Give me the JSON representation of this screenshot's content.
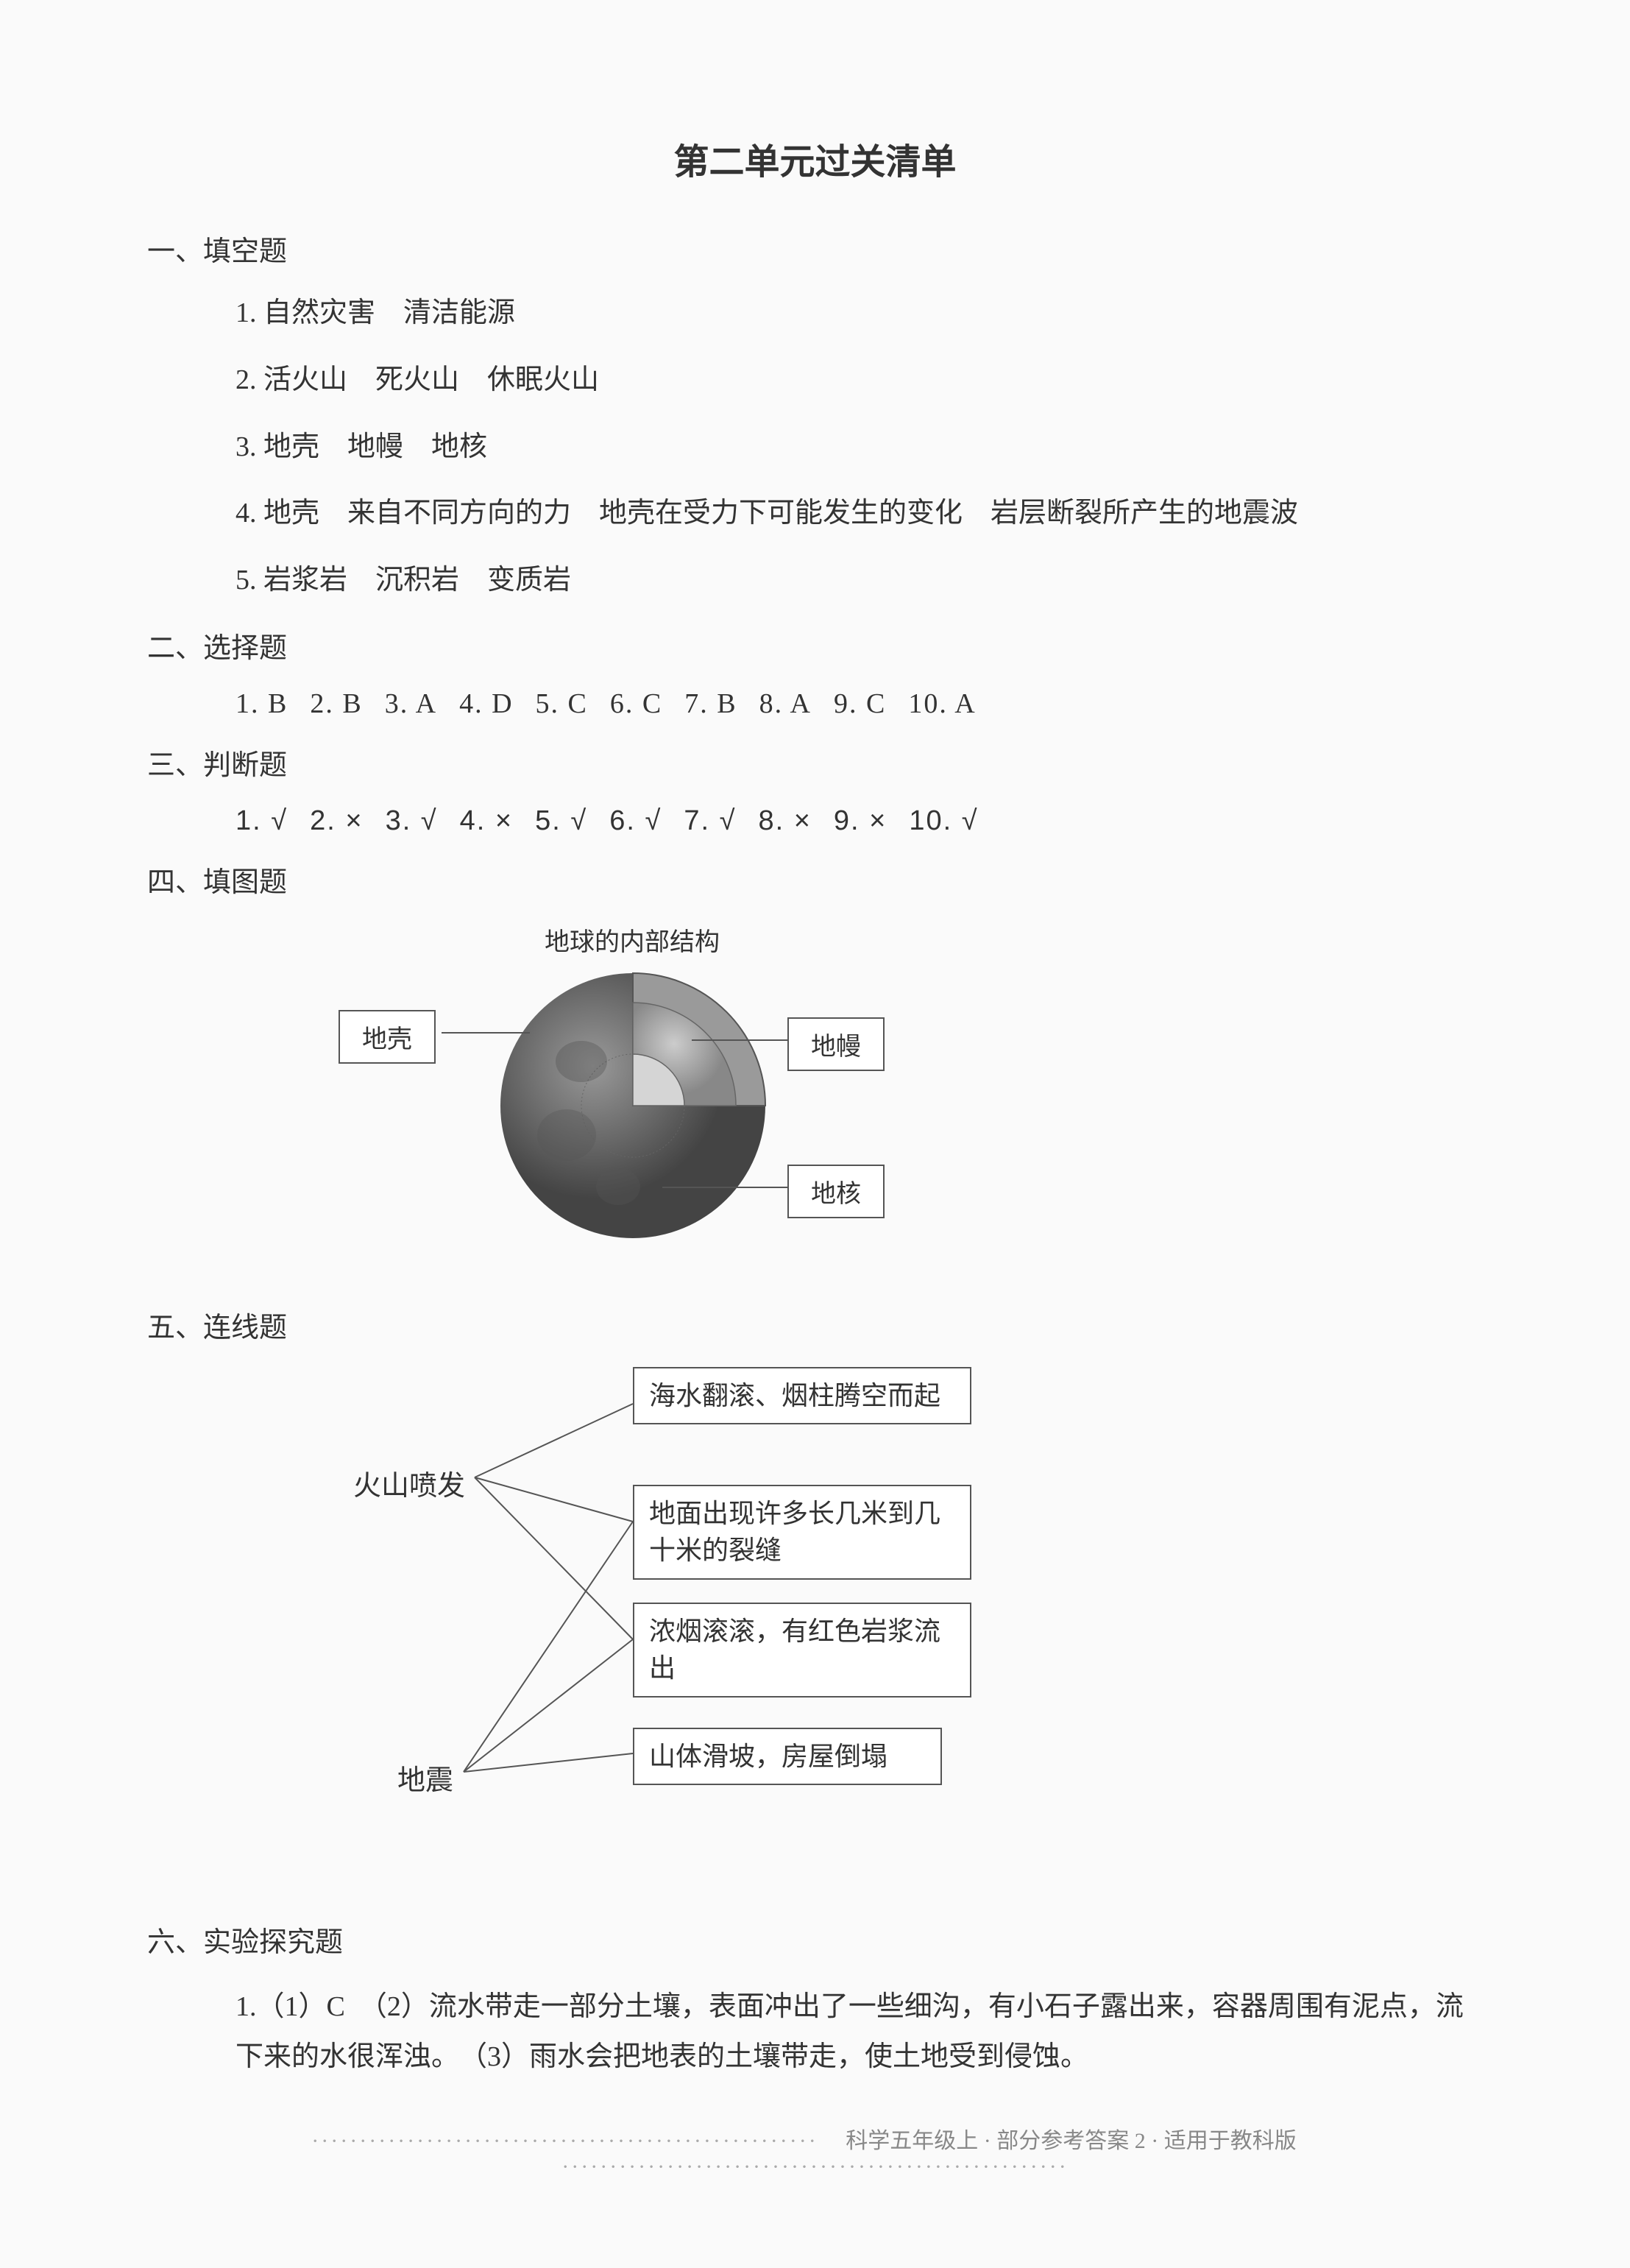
{
  "title": "第二单元过关清单",
  "sections": {
    "fillBlank": {
      "heading": "一、填空题",
      "items": [
        "1. 自然灾害　清洁能源",
        "2. 活火山　死火山　休眠火山",
        "3. 地壳　地幔　地核",
        "4. 地壳　来自不同方向的力　地壳在受力下可能发生的变化　岩层断裂所产生的地震波",
        "5. 岩浆岩　沉积岩　变质岩"
      ]
    },
    "choice": {
      "heading": "二、选择题",
      "answers": [
        {
          "n": "1.",
          "a": "B"
        },
        {
          "n": "2.",
          "a": "B"
        },
        {
          "n": "3.",
          "a": "A"
        },
        {
          "n": "4.",
          "a": "D"
        },
        {
          "n": "5.",
          "a": "C"
        },
        {
          "n": "6.",
          "a": "C"
        },
        {
          "n": "7.",
          "a": "B"
        },
        {
          "n": "8.",
          "a": "A"
        },
        {
          "n": "9.",
          "a": "C"
        },
        {
          "n": "10.",
          "a": "A"
        }
      ]
    },
    "judge": {
      "heading": "三、判断题",
      "answers": [
        {
          "n": "1.",
          "a": "√"
        },
        {
          "n": "2.",
          "a": "×"
        },
        {
          "n": "3.",
          "a": "√"
        },
        {
          "n": "4.",
          "a": "×"
        },
        {
          "n": "5.",
          "a": "√"
        },
        {
          "n": "6.",
          "a": "√"
        },
        {
          "n": "7.",
          "a": "√"
        },
        {
          "n": "8.",
          "a": "×"
        },
        {
          "n": "9.",
          "a": "×"
        },
        {
          "n": "10.",
          "a": "√"
        }
      ]
    },
    "diagram": {
      "heading": "四、填图题",
      "title": "地球的内部结构",
      "labels": {
        "crust": "地壳",
        "mantle": "地幔",
        "core": "地核"
      },
      "colors": {
        "outerSphere": "#6a6a6a",
        "cutaway": "#8a8a8a",
        "mantleLayer": "#aaaaaa",
        "coreLayer": "#c8c8c8",
        "boxBorder": "#555555",
        "boxBg": "#ffffff"
      }
    },
    "matching": {
      "heading": "五、连线题",
      "left": [
        "火山喷发",
        "地震"
      ],
      "right": [
        "海水翻滚、烟柱腾空而起",
        "地面出现许多长几米到几十米的裂缝",
        "浓烟滚滚，有红色岩浆流出",
        "山体滑坡，房屋倒塌"
      ],
      "edges": [
        {
          "from": 0,
          "to": 0
        },
        {
          "from": 0,
          "to": 1
        },
        {
          "from": 0,
          "to": 2
        },
        {
          "from": 1,
          "to": 1
        },
        {
          "from": 1,
          "to": 2
        },
        {
          "from": 1,
          "to": 3
        }
      ],
      "lineColor": "#555555"
    },
    "experiment": {
      "heading": "六、实验探究题",
      "text": "1.（1）C　（2）流水带走一部分土壤，表面冲出了一些细沟，有小石子露出来，容器周围有泥点，流下来的水很浑浊。　（3）雨水会把地表的土壤带走，使土地受到侵蚀。"
    }
  },
  "footer": {
    "dotsLeft": "·····················································",
    "text": "　科学五年级上 · 部分参考答案 2 · 适用于教科版　",
    "dotsRight": "·····················································"
  }
}
